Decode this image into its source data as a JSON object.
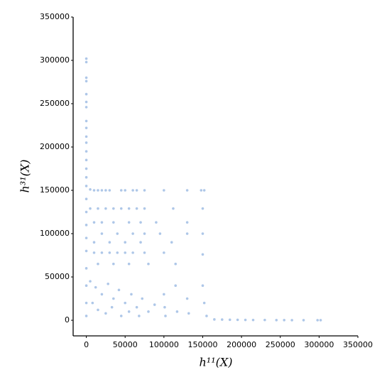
{
  "chart_data": {
    "type": "scatter",
    "x_label": "h¹¹(X)",
    "y_label": "h³¹(X)",
    "color": "#aec7e8",
    "x": [
      0,
      0,
      0,
      0,
      0,
      0,
      0,
      0,
      0,
      0,
      0,
      0,
      0,
      0,
      0,
      0,
      0,
      0,
      0,
      0,
      0,
      0,
      0,
      0,
      0,
      5000,
      10000,
      15000,
      20000,
      25000,
      30000,
      45000,
      50000,
      60000,
      65000,
      75000,
      100000,
      130000,
      148000,
      152000,
      5000,
      15000,
      25000,
      35000,
      45000,
      55000,
      65000,
      75000,
      112000,
      150000,
      10000,
      20000,
      35000,
      55000,
      70000,
      90000,
      130000,
      20000,
      40000,
      60000,
      75000,
      95000,
      130000,
      150000,
      10000,
      30000,
      50000,
      70000,
      110000,
      10000,
      20000,
      30000,
      40000,
      50000,
      60000,
      75000,
      100000,
      150000,
      15000,
      35000,
      55000,
      80000,
      115000,
      5000,
      12000,
      20000,
      28000,
      35000,
      42000,
      50000,
      58000,
      65000,
      72000,
      80000,
      88000,
      8000,
      15000,
      25000,
      33000,
      45000,
      55000,
      68000,
      100000,
      101000,
      102000,
      115000,
      117000,
      130000,
      132000,
      150000,
      152000,
      155000,
      165000,
      175000,
      185000,
      195000,
      205000,
      215000,
      230000,
      245000,
      255000,
      265000,
      280000,
      298000,
      302000
    ],
    "values": [
      302000,
      298000,
      280000,
      276000,
      261000,
      252000,
      246000,
      230000,
      222000,
      212000,
      205000,
      195000,
      185000,
      175000,
      165000,
      155000,
      140000,
      125000,
      110000,
      95000,
      80000,
      60000,
      40000,
      20000,
      5000,
      151000,
      150000,
      150000,
      150000,
      150000,
      150000,
      150000,
      150000,
      150000,
      150000,
      150000,
      150000,
      150000,
      150000,
      150000,
      129000,
      129000,
      129000,
      129000,
      129000,
      129000,
      129000,
      129000,
      129000,
      129000,
      113000,
      113000,
      113000,
      113000,
      113000,
      113000,
      113000,
      100000,
      100000,
      100000,
      100000,
      100000,
      100000,
      100000,
      90000,
      90000,
      90000,
      90000,
      90000,
      78000,
      78000,
      78000,
      78000,
      78000,
      78000,
      78000,
      78000,
      76000,
      65000,
      65000,
      65000,
      65000,
      65000,
      45000,
      38000,
      30000,
      42000,
      25000,
      35000,
      20000,
      30000,
      15000,
      25000,
      10000,
      18000,
      20000,
      12000,
      8000,
      15000,
      5000,
      10000,
      5000,
      30000,
      15000,
      5000,
      40000,
      10000,
      25000,
      8000,
      40000,
      20000,
      5000,
      1000,
      800,
      600,
      500,
      400,
      300,
      300,
      200,
      200,
      100,
      100,
      100,
      100
    ],
    "xlim": [
      -17000,
      350000
    ],
    "ylim": [
      -18000,
      350000
    ],
    "xticks": [
      0,
      50000,
      100000,
      150000,
      200000,
      250000,
      300000,
      350000
    ],
    "yticks": [
      0,
      50000,
      100000,
      150000,
      200000,
      250000,
      300000,
      350000
    ]
  }
}
